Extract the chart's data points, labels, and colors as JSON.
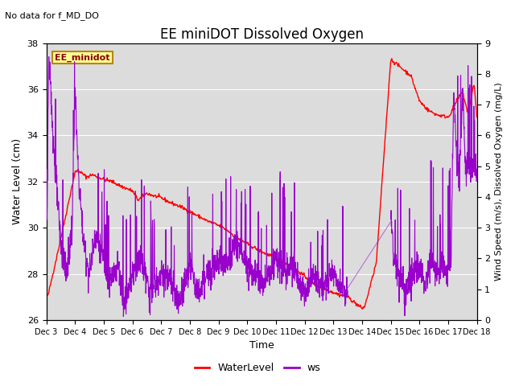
{
  "title": "EE miniDOT Dissolved Oxygen",
  "subtitle": "No data for f_MD_DO",
  "xlabel": "Time",
  "ylabel_left": "Water Level (cm)",
  "ylabel_right": "Wind Speed (m/s), Dissolved Oxygen (mg/L)",
  "legend_label": "EE_minidot",
  "ylim_left": [
    26,
    38
  ],
  "ylim_right": [
    0.0,
    9.0
  ],
  "yticks_left": [
    26,
    28,
    30,
    32,
    34,
    36,
    38
  ],
  "yticks_right": [
    0.0,
    1.0,
    2.0,
    3.0,
    4.0,
    5.0,
    6.0,
    7.0,
    8.0,
    9.0
  ],
  "xtick_labels": [
    "Dec 3",
    "Dec 4",
    "Dec 5",
    "Dec 6",
    "Dec 7",
    "Dec 8",
    "Dec 9",
    "Dec 10",
    "Dec 11",
    "Dec 12",
    "Dec 13",
    "Dec 14",
    "Dec 15",
    "Dec 16",
    "Dec 17",
    "Dec 18"
  ],
  "water_color": "#ff0000",
  "ws_color": "#9900cc",
  "bg_color": "#dcdcdc",
  "legend_bg": "#ffff99",
  "legend_border": "#b8860b",
  "figsize": [
    6.4,
    4.8
  ],
  "dpi": 100
}
